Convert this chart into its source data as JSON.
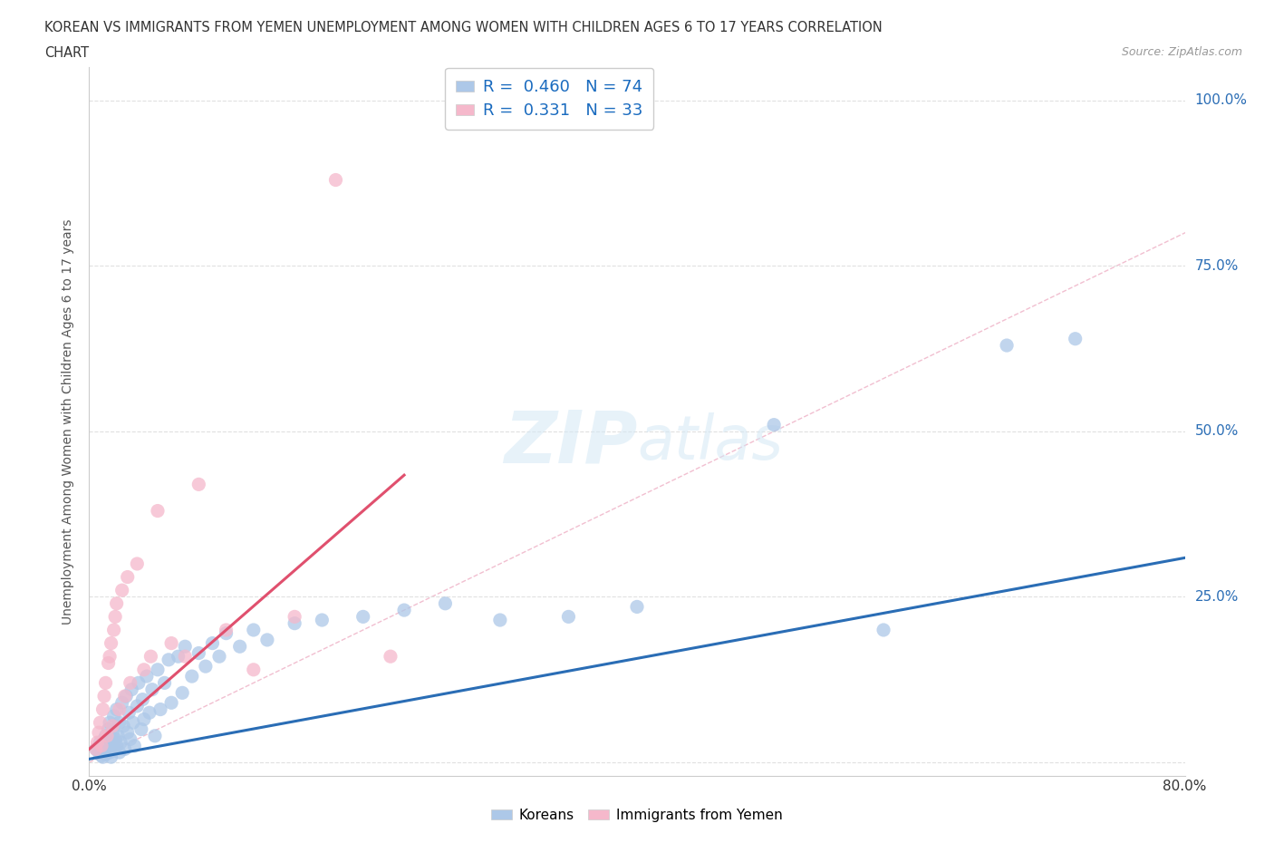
{
  "title_line1": "KOREAN VS IMMIGRANTS FROM YEMEN UNEMPLOYMENT AMONG WOMEN WITH CHILDREN AGES 6 TO 17 YEARS CORRELATION",
  "title_line2": "CHART",
  "source": "Source: ZipAtlas.com",
  "ylabel": "Unemployment Among Women with Children Ages 6 to 17 years",
  "xlim": [
    0.0,
    0.8
  ],
  "ylim": [
    -0.02,
    1.05
  ],
  "korean_R": "0.460",
  "korean_N": "74",
  "yemen_R": "0.331",
  "yemen_N": "33",
  "korean_color": "#adc8e8",
  "korean_line_color": "#2a6db5",
  "yemen_color": "#f5b8cb",
  "yemen_line_color": "#e0506e",
  "diagonal_color": "#f0b8cb",
  "background_color": "#ffffff",
  "korean_x": [
    0.005,
    0.007,
    0.008,
    0.009,
    0.01,
    0.01,
    0.011,
    0.012,
    0.012,
    0.013,
    0.014,
    0.014,
    0.015,
    0.015,
    0.016,
    0.016,
    0.017,
    0.018,
    0.018,
    0.019,
    0.02,
    0.02,
    0.021,
    0.022,
    0.022,
    0.023,
    0.024,
    0.025,
    0.026,
    0.027,
    0.028,
    0.029,
    0.03,
    0.031,
    0.032,
    0.033,
    0.035,
    0.036,
    0.038,
    0.039,
    0.04,
    0.042,
    0.044,
    0.046,
    0.048,
    0.05,
    0.052,
    0.055,
    0.058,
    0.06,
    0.065,
    0.068,
    0.07,
    0.075,
    0.08,
    0.085,
    0.09,
    0.095,
    0.1,
    0.11,
    0.12,
    0.13,
    0.15,
    0.17,
    0.2,
    0.23,
    0.26,
    0.3,
    0.35,
    0.4,
    0.5,
    0.58,
    0.67,
    0.72
  ],
  "korean_y": [
    0.02,
    0.015,
    0.03,
    0.01,
    0.025,
    0.008,
    0.035,
    0.012,
    0.04,
    0.018,
    0.05,
    0.022,
    0.015,
    0.06,
    0.03,
    0.008,
    0.045,
    0.02,
    0.07,
    0.035,
    0.025,
    0.08,
    0.04,
    0.015,
    0.06,
    0.03,
    0.09,
    0.055,
    0.02,
    0.1,
    0.045,
    0.075,
    0.035,
    0.11,
    0.06,
    0.025,
    0.085,
    0.12,
    0.05,
    0.095,
    0.065,
    0.13,
    0.075,
    0.11,
    0.04,
    0.14,
    0.08,
    0.12,
    0.155,
    0.09,
    0.16,
    0.105,
    0.175,
    0.13,
    0.165,
    0.145,
    0.18,
    0.16,
    0.195,
    0.175,
    0.2,
    0.185,
    0.21,
    0.215,
    0.22,
    0.23,
    0.24,
    0.215,
    0.22,
    0.235,
    0.51,
    0.2,
    0.63,
    0.64
  ],
  "yemen_x": [
    0.005,
    0.006,
    0.007,
    0.008,
    0.009,
    0.01,
    0.011,
    0.012,
    0.013,
    0.014,
    0.015,
    0.016,
    0.017,
    0.018,
    0.019,
    0.02,
    0.022,
    0.024,
    0.026,
    0.028,
    0.03,
    0.035,
    0.04,
    0.045,
    0.05,
    0.06,
    0.07,
    0.08,
    0.1,
    0.12,
    0.15,
    0.18,
    0.22
  ],
  "yemen_y": [
    0.02,
    0.03,
    0.045,
    0.06,
    0.025,
    0.08,
    0.1,
    0.12,
    0.04,
    0.15,
    0.16,
    0.18,
    0.055,
    0.2,
    0.22,
    0.24,
    0.08,
    0.26,
    0.1,
    0.28,
    0.12,
    0.3,
    0.14,
    0.16,
    0.38,
    0.18,
    0.16,
    0.42,
    0.2,
    0.14,
    0.22,
    0.88,
    0.16
  ]
}
